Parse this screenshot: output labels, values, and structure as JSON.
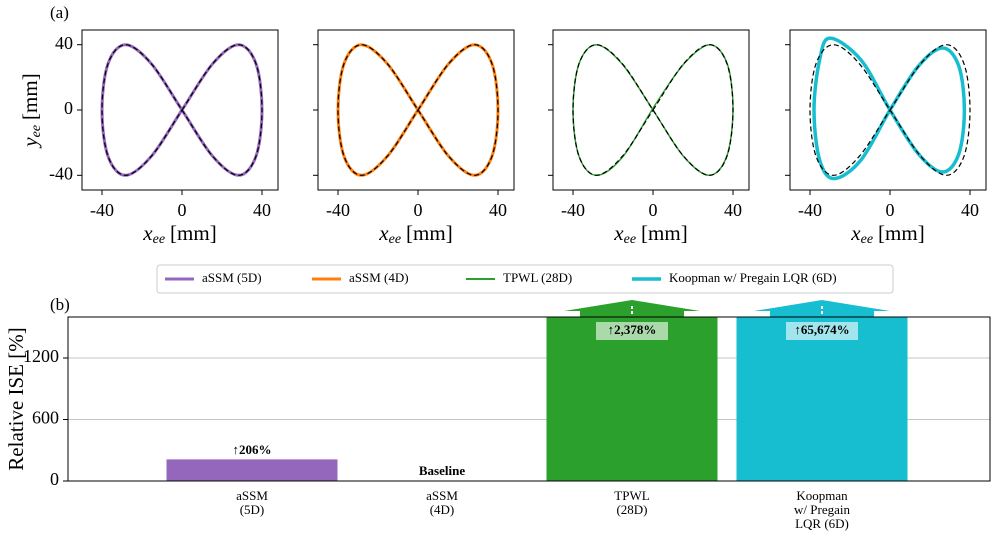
{
  "reference": {
    "style": "dashed",
    "color": "#000000",
    "x": [
      0,
      15.3,
      28.3,
      37,
      40,
      37,
      28.3,
      15.3,
      0,
      -15.3,
      -28.3,
      -37,
      -40,
      -37,
      -28.3,
      -15.3
    ],
    "values": [
      0,
      28.3,
      40,
      28.3,
      0,
      -28.3,
      -40,
      -28.3,
      0,
      28.3,
      40,
      28.3,
      0,
      -28.3,
      -40,
      -28.3
    ]
  },
  "chart_data": [
    {
      "type": "line",
      "label": "(a)",
      "xlabel": {
        "symbol": "x",
        "sub": "ee",
        "unit": "[mm]"
      },
      "ylabel": {
        "symbol": "y",
        "sub": "ee",
        "unit": "[mm]"
      },
      "xlim": [
        -50,
        48
      ],
      "ylim": [
        -49,
        49
      ],
      "xticks": [
        -40,
        0,
        40
      ],
      "yticks": [
        -40,
        0,
        40
      ],
      "ytick_labels": true,
      "series": [
        {
          "name": "aSSM (5D)",
          "color": "#9467bd",
          "linewidth": 3,
          "x": [
            0,
            15.3,
            28.3,
            37,
            40,
            37,
            28.3,
            15.3,
            0,
            -15.3,
            -28.3,
            -37,
            -40,
            -37,
            -28.3,
            -15.3
          ],
          "values": [
            0,
            28.3,
            40,
            28.3,
            0,
            -28.3,
            -40,
            -28.3,
            0,
            28.3,
            40,
            28.3,
            0,
            -28.3,
            -40,
            -28.3
          ]
        }
      ]
    },
    {
      "type": "line",
      "xlabel": {
        "symbol": "x",
        "sub": "ee",
        "unit": "[mm]"
      },
      "xlim": [
        -50,
        48
      ],
      "ylim": [
        -49,
        49
      ],
      "xticks": [
        -40,
        0,
        40
      ],
      "yticks": [
        -40,
        0,
        40
      ],
      "ytick_labels": false,
      "series": [
        {
          "name": "aSSM (4D)",
          "color": "#ff7f0e",
          "linewidth": 3,
          "x": [
            0,
            15.3,
            28.3,
            37,
            40,
            37,
            28.3,
            15.3,
            0,
            -15.3,
            -28.3,
            -37,
            -40,
            -37,
            -28.3,
            -15.3
          ],
          "values": [
            0,
            28.3,
            40,
            28.3,
            0,
            -28.3,
            -40,
            -28.3,
            0,
            28.3,
            40,
            28.3,
            0,
            -28.3,
            -40,
            -28.3
          ]
        }
      ]
    },
    {
      "type": "line",
      "xlabel": {
        "symbol": "x",
        "sub": "ee",
        "unit": "[mm]"
      },
      "xlim": [
        -50,
        48
      ],
      "ylim": [
        -49,
        49
      ],
      "xticks": [
        -40,
        0,
        40
      ],
      "yticks": [
        -40,
        0,
        40
      ],
      "ytick_labels": false,
      "series": [
        {
          "name": "TPWL (28D)",
          "color": "#2ca02c",
          "linewidth": 1.5,
          "x": [
            1,
            15.8,
            28.6,
            37.2,
            40,
            36.8,
            28,
            15,
            0,
            -15.5,
            -28.4,
            -37,
            -40,
            -37,
            -28.3,
            -15
          ],
          "values": [
            3,
            28.8,
            40,
            28,
            0,
            -28.6,
            -40,
            -28,
            0,
            28.3,
            40,
            28.3,
            0,
            -28.3,
            -40,
            -28.5
          ]
        }
      ]
    },
    {
      "type": "line",
      "xlabel": {
        "symbol": "x",
        "sub": "ee",
        "unit": "[mm]"
      },
      "xlim": [
        -50,
        48
      ],
      "ylim": [
        -49,
        49
      ],
      "xticks": [
        -40,
        0,
        40
      ],
      "yticks": [
        -40,
        0,
        40
      ],
      "ytick_labels": false,
      "series": [
        {
          "name": "Koopman w/ Pregain LQR (6D)",
          "color": "#17becf",
          "linewidth": 3.5,
          "x": [
            0,
            14.2,
            26.3,
            34.4,
            37.2,
            34.4,
            26.3,
            14.2,
            0,
            -14.5,
            -30,
            -35.2,
            -38,
            -35.2,
            -28,
            -14.5
          ],
          "values": [
            0,
            26.9,
            38,
            26.9,
            0,
            -26.9,
            -38,
            -26.9,
            0,
            30.6,
            44,
            30.6,
            0,
            -30.6,
            -42,
            -30.6
          ]
        }
      ]
    },
    {
      "type": "bar",
      "label": "(b)",
      "ylabel": "Relative ISE [%]",
      "categories": [
        "aSSM\n(5D)",
        "aSSM\n(4D)",
        "TPWL\n(28D)",
        "Koopman\nw/ Pregain\nLQR (6D)"
      ],
      "values": [
        206,
        0,
        2378,
        65674
      ],
      "value_labels": [
        "↑206%",
        "Baseline",
        "↑2,378%",
        "↑65,674%"
      ],
      "colors": [
        "#9467bd",
        "#ff7f0e",
        "#2ca02c",
        "#17becf"
      ],
      "ylim": [
        0,
        1600
      ],
      "yticks": [
        0,
        600,
        1200
      ],
      "grid": true
    }
  ]
}
